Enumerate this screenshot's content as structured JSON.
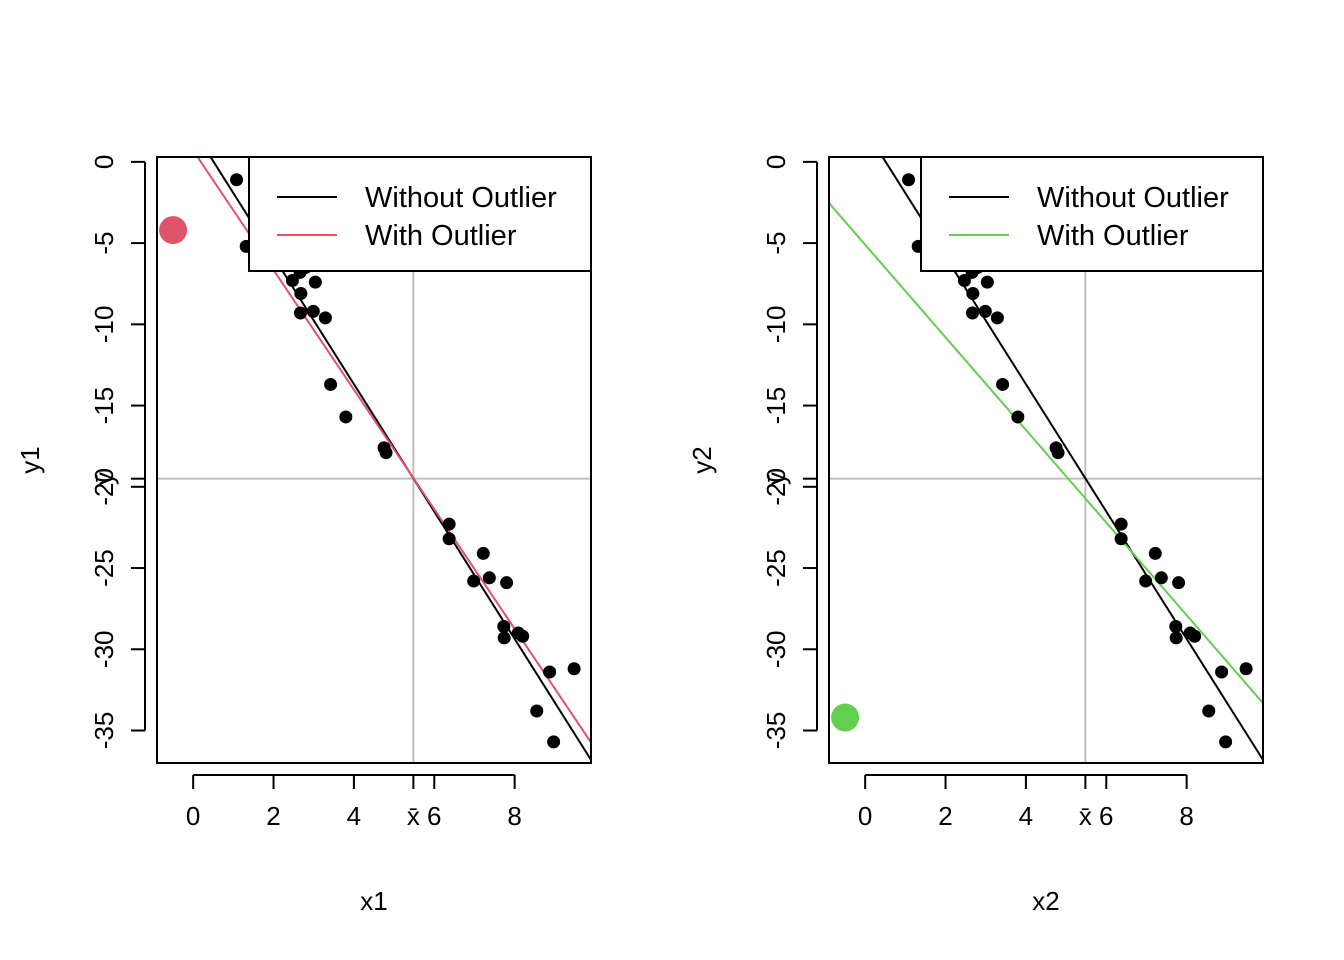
{
  "chart_data": [
    {
      "type": "scatter",
      "xlabel": "x1",
      "ylabel": "y1",
      "xlim": [
        -0.9,
        9.9
      ],
      "ylim": [
        -37.0,
        0.3
      ],
      "x_ticks": [
        0,
        2,
        4,
        6,
        8
      ],
      "x_tick_labels": [
        "0",
        "2",
        "4",
        "6",
        "8"
      ],
      "y_ticks": [
        0,
        -5,
        -10,
        -15,
        -20,
        -25,
        -30,
        -35
      ],
      "y_tick_labels": [
        "0",
        "-5",
        "-10",
        "-15",
        "-20",
        "-25",
        "-30",
        "-35"
      ],
      "mean_x": 5.48,
      "mean_x_label": "x̄",
      "mean_y": -19.5,
      "mean_y_label": "ȳ",
      "grid": false,
      "reference_lines": {
        "color": "#bebebe"
      },
      "points": {
        "color": "#000000",
        "x": [
          1.08,
          1.32,
          2.47,
          2.66,
          2.8,
          2.68,
          3.04,
          2.67,
          2.99,
          3.29,
          3.42,
          3.8,
          4.75,
          4.8,
          6.37,
          6.37,
          7.22,
          6.98,
          7.37,
          7.8,
          7.73,
          7.74,
          8.09,
          8.2,
          8.87,
          8.55,
          8.97,
          9.48
        ],
        "y": [
          -1.1,
          -5.2,
          -7.3,
          -6.8,
          -6.5,
          -8.1,
          -7.4,
          -9.3,
          -9.2,
          -9.6,
          -13.7,
          -15.7,
          -17.6,
          -17.9,
          -22.3,
          -23.2,
          -24.1,
          -25.8,
          -25.6,
          -25.9,
          -28.6,
          -29.3,
          -29.0,
          -29.2,
          -31.4,
          -33.8,
          -35.7,
          -31.2
        ]
      },
      "outlier": {
        "x": -0.5,
        "y": -4.2,
        "color": "#df536b"
      },
      "fit_lines": [
        {
          "name": "Without Outlier",
          "color": "#000000",
          "intercept": 2.0,
          "slope": -3.92
        },
        {
          "name": "With Outlier",
          "color": "#df536b",
          "intercept": 0.7,
          "slope": -3.68
        }
      ],
      "legend": {
        "placement": "top-right",
        "entries": [
          {
            "label": "Without Outlier",
            "color": "#000000"
          },
          {
            "label": "With Outlier",
            "color": "#df536b"
          }
        ]
      }
    },
    {
      "type": "scatter",
      "xlabel": "x2",
      "ylabel": "y2",
      "xlim": [
        -0.9,
        9.9
      ],
      "ylim": [
        -37.0,
        0.3
      ],
      "x_ticks": [
        0,
        2,
        4,
        6,
        8
      ],
      "x_tick_labels": [
        "0",
        "2",
        "4",
        "6",
        "8"
      ],
      "y_ticks": [
        0,
        -5,
        -10,
        -15,
        -20,
        -25,
        -30,
        -35
      ],
      "y_tick_labels": [
        "0",
        "-5",
        "-10",
        "-15",
        "-20",
        "-25",
        "-30",
        "-35"
      ],
      "mean_x": 5.48,
      "mean_x_label": "x̄",
      "mean_y": -19.5,
      "mean_y_label": "ȳ",
      "grid": false,
      "reference_lines": {
        "color": "#bebebe"
      },
      "points": {
        "color": "#000000",
        "x": [
          1.08,
          1.32,
          2.47,
          2.66,
          2.8,
          2.68,
          3.04,
          2.67,
          2.99,
          3.29,
          3.42,
          3.8,
          4.75,
          4.8,
          6.37,
          6.37,
          7.22,
          6.98,
          7.37,
          7.8,
          7.73,
          7.74,
          8.09,
          8.2,
          8.87,
          8.55,
          8.97,
          9.48
        ],
        "y": [
          -1.1,
          -5.2,
          -7.3,
          -6.8,
          -6.5,
          -8.1,
          -7.4,
          -9.3,
          -9.2,
          -9.6,
          -13.7,
          -15.7,
          -17.6,
          -17.9,
          -22.3,
          -23.2,
          -24.1,
          -25.8,
          -25.6,
          -25.9,
          -28.6,
          -29.3,
          -29.0,
          -29.2,
          -31.4,
          -33.8,
          -35.7,
          -31.2
        ]
      },
      "outlier": {
        "x": -0.5,
        "y": -34.2,
        "color": "#61d04f"
      },
      "fit_lines": [
        {
          "name": "Without Outlier",
          "color": "#000000",
          "intercept": 2.0,
          "slope": -3.92
        },
        {
          "name": "With Outlier",
          "color": "#61d04f",
          "intercept": -5.1,
          "slope": -2.85
        }
      ],
      "legend": {
        "placement": "top-right",
        "entries": [
          {
            "label": "Without Outlier",
            "color": "#000000"
          },
          {
            "label": "With Outlier",
            "color": "#61d04f"
          }
        ]
      }
    }
  ]
}
